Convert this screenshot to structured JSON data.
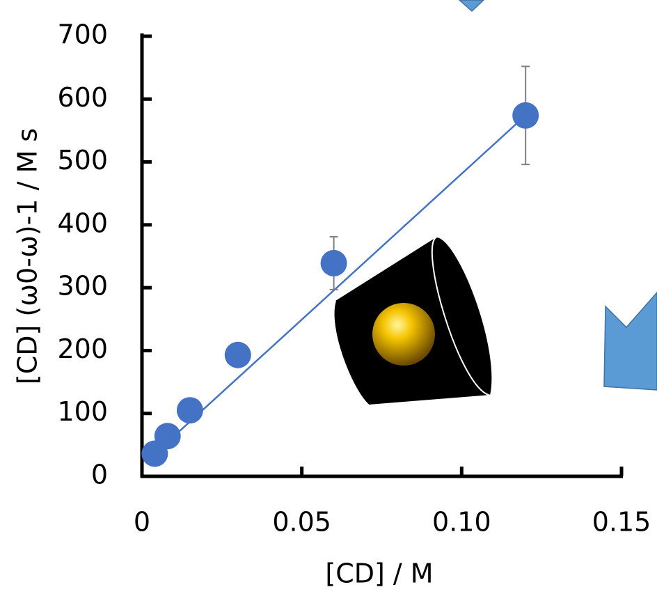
{
  "chart_data": {
    "type": "scatter",
    "x_label": "[CD] / M",
    "y_label": "[CD] (ω0-ω)-1 / M s",
    "x": [
      0.004,
      0.008,
      0.015,
      0.03,
      0.06,
      0.12
    ],
    "values": [
      36,
      64,
      105,
      193,
      339,
      574
    ],
    "errors": [
      null,
      null,
      null,
      null,
      42,
      78
    ],
    "color": "#4472c4",
    "error_color": "#808080",
    "trendline": {
      "x": [
        0.004,
        0.12
      ],
      "values": [
        36,
        574
      ],
      "color": "#4472c4"
    },
    "xlim": [
      0,
      0.15
    ],
    "xticks": [
      0,
      0.05,
      {
        "value": 0.1,
        "label": "0.10"
      },
      0.15
    ],
    "ylim": [
      0,
      700
    ],
    "yticks": [
      0,
      100,
      200,
      300,
      400,
      500,
      600,
      700
    ]
  }
}
